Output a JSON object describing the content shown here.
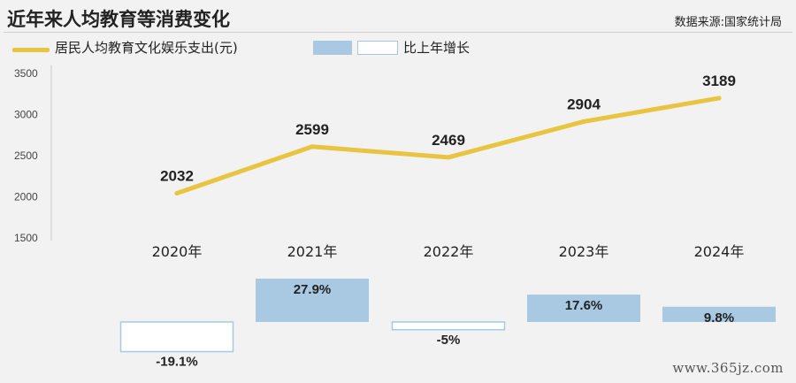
{
  "header": {
    "title": "近年来人均教育等消费变化",
    "source": "数据来源:国家统计局"
  },
  "legend": {
    "line_label": "居民人均教育文化娱乐支出(元)",
    "bar_label": "比上年增长"
  },
  "watermark": "www.365jz.com",
  "colors": {
    "line": "#e8c440",
    "bar_positive": "#a9c8e2",
    "bar_negative_border": "#a9c8e2",
    "bar_negative_fill": "#ffffff",
    "background": "#f2f2f2"
  },
  "chart_data": {
    "type": "line+bar",
    "categories": [
      "2020年",
      "2021年",
      "2022年",
      "2023年",
      "2024年"
    ],
    "y_ticks": [
      "3500",
      "3000",
      "2500",
      "2000",
      "1500"
    ],
    "ylim": [
      1500,
      3500
    ],
    "series": [
      {
        "name": "居民人均教育文化娱乐支出(元)",
        "type": "line",
        "values": [
          2032,
          2599,
          2469,
          2904,
          3189
        ],
        "labels": [
          "2032",
          "2599",
          "2469",
          "2904",
          "3189"
        ]
      },
      {
        "name": "比上年增长",
        "type": "bar",
        "values": [
          -19.1,
          27.9,
          -5,
          17.6,
          9.8
        ],
        "labels": [
          "-19.1%",
          "27.9%",
          "-5%",
          "17.6%",
          "9.8%"
        ]
      }
    ]
  }
}
